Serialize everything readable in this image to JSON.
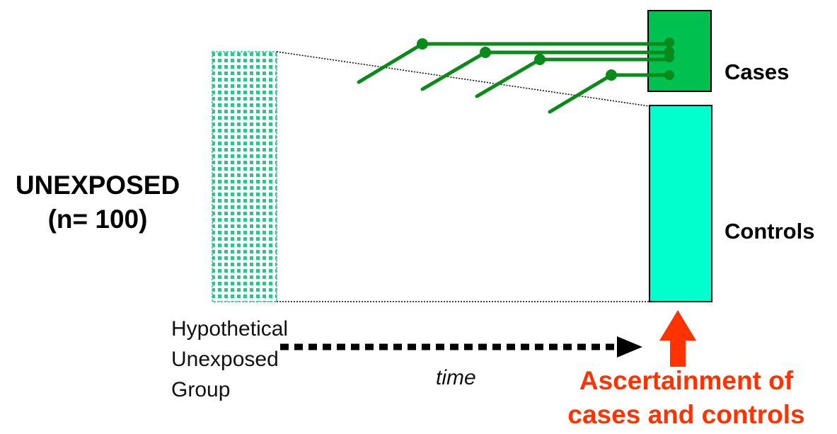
{
  "group_label": {
    "line1": "UNEXPOSED",
    "line2": "(n= 100)"
  },
  "cases_label": "Cases",
  "controls_label": "Controls",
  "hypothetical_label": {
    "line1": "Hypothetical",
    "line2": "Unexposed",
    "line3": "Group"
  },
  "time_label": "time",
  "ascertainment_label": {
    "line1": "Ascertainment of",
    "line2": "cases and controls"
  },
  "colors": {
    "cases_box": "#00c050",
    "controls_box": "#00ffcc",
    "cohort_dots": "#22cc88",
    "case_lines": "#0a8a1a",
    "ascertainment": "#ff3300",
    "time_arrow": "#000000"
  },
  "icons": {
    "time_arrow": "dotted-arrow-right-icon",
    "ascertainment_arrow": "arrow-up-icon"
  }
}
